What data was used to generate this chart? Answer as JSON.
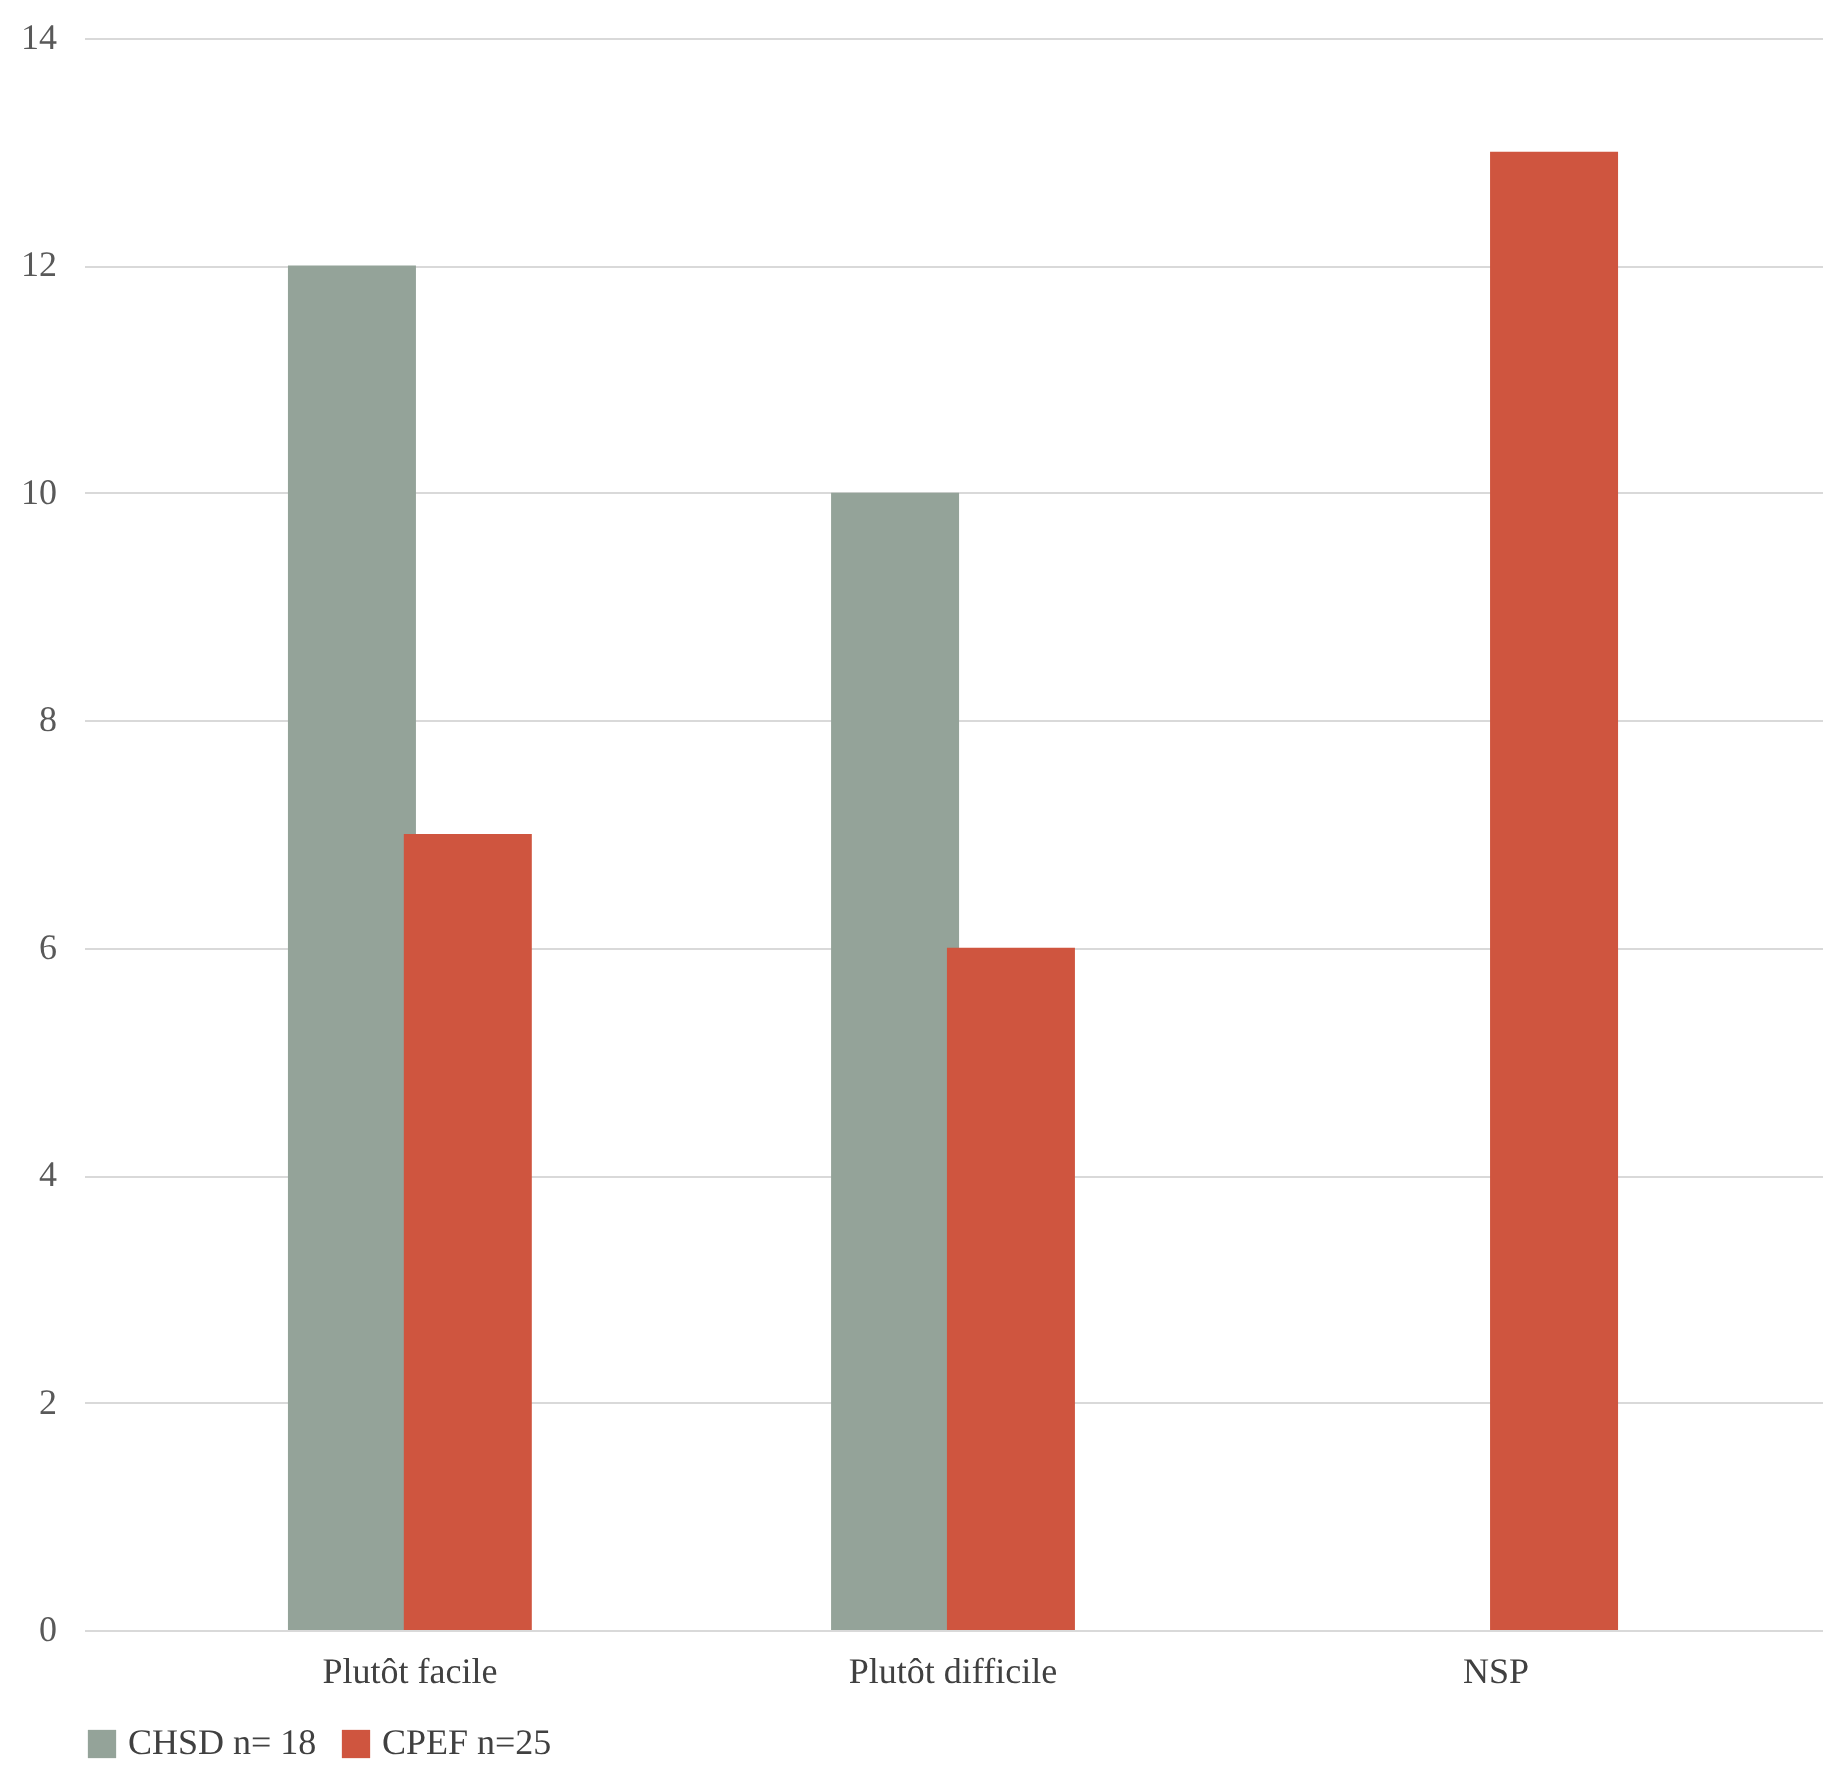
{
  "chart_data": {
    "type": "bar",
    "categories": [
      "Plutôt facile",
      "Plutôt difficile",
      "NSP"
    ],
    "series": [
      {
        "name": "CHSD n= 18",
        "color": "#94a399",
        "values": [
          12,
          10,
          null
        ]
      },
      {
        "name": "CPEF n=25",
        "color": "#cf553f",
        "values": [
          7,
          6,
          13
        ]
      }
    ],
    "ylim": [
      0,
      14
    ],
    "yticks": [
      0,
      2,
      4,
      6,
      8,
      10,
      12,
      14
    ],
    "grid": "y",
    "legend": "bottom"
  }
}
